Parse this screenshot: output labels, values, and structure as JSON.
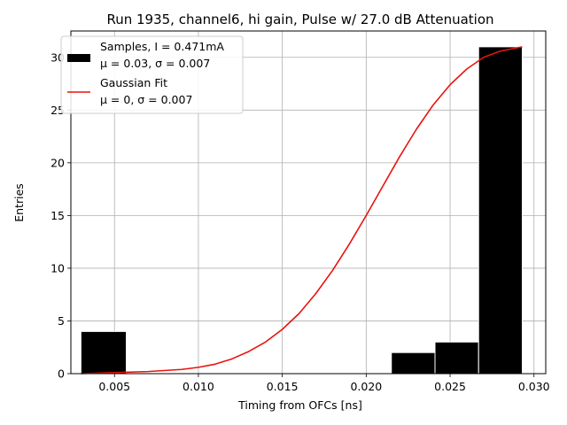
{
  "chart_data": {
    "type": "bar",
    "title": "Run 1935, channel6, hi gain, Pulse w/ 27.0 dB Attenuation",
    "xlabel": "Timing from OFCs [ns]",
    "ylabel": "Entries",
    "xlim": [
      0.0024,
      0.0307
    ],
    "ylim": [
      0,
      32.5
    ],
    "xticks": [
      0.005,
      0.01,
      0.015,
      0.02,
      0.025,
      0.03
    ],
    "xtick_labels": [
      "0.005",
      "0.010",
      "0.015",
      "0.020",
      "0.025",
      "0.030"
    ],
    "yticks": [
      0,
      5,
      10,
      15,
      20,
      25,
      30
    ],
    "ytick_labels": [
      "0",
      "5",
      "10",
      "15",
      "20",
      "25",
      "30"
    ],
    "grid": true,
    "legend_position": "top-left",
    "histogram": {
      "name_line1": "Samples, I = 0.471mA",
      "name_line2": "μ = 0.03, σ = 0.007",
      "color": "#000000",
      "bins": [
        {
          "x0": 0.003,
          "x1": 0.0057,
          "count": 4
        },
        {
          "x0": 0.0215,
          "x1": 0.0241,
          "count": 2
        },
        {
          "x0": 0.0241,
          "x1": 0.0267,
          "count": 3
        },
        {
          "x0": 0.0267,
          "x1": 0.0293,
          "count": 31
        }
      ]
    },
    "fit": {
      "name_line1": "Gaussian Fit",
      "name_line2": "μ = 0, σ = 0.007",
      "color": "#e8130e",
      "x": [
        0.003,
        0.005,
        0.007,
        0.009,
        0.01,
        0.011,
        0.012,
        0.013,
        0.014,
        0.015,
        0.016,
        0.017,
        0.018,
        0.019,
        0.02,
        0.021,
        0.022,
        0.023,
        0.024,
        0.025,
        0.026,
        0.027,
        0.028,
        0.0293
      ],
      "y": [
        0.0,
        0.1,
        0.2,
        0.4,
        0.6,
        0.9,
        1.4,
        2.1,
        3.0,
        4.2,
        5.7,
        7.6,
        9.8,
        12.3,
        15.0,
        17.8,
        20.6,
        23.2,
        25.5,
        27.4,
        28.9,
        30.0,
        30.6,
        31.0
      ]
    }
  }
}
